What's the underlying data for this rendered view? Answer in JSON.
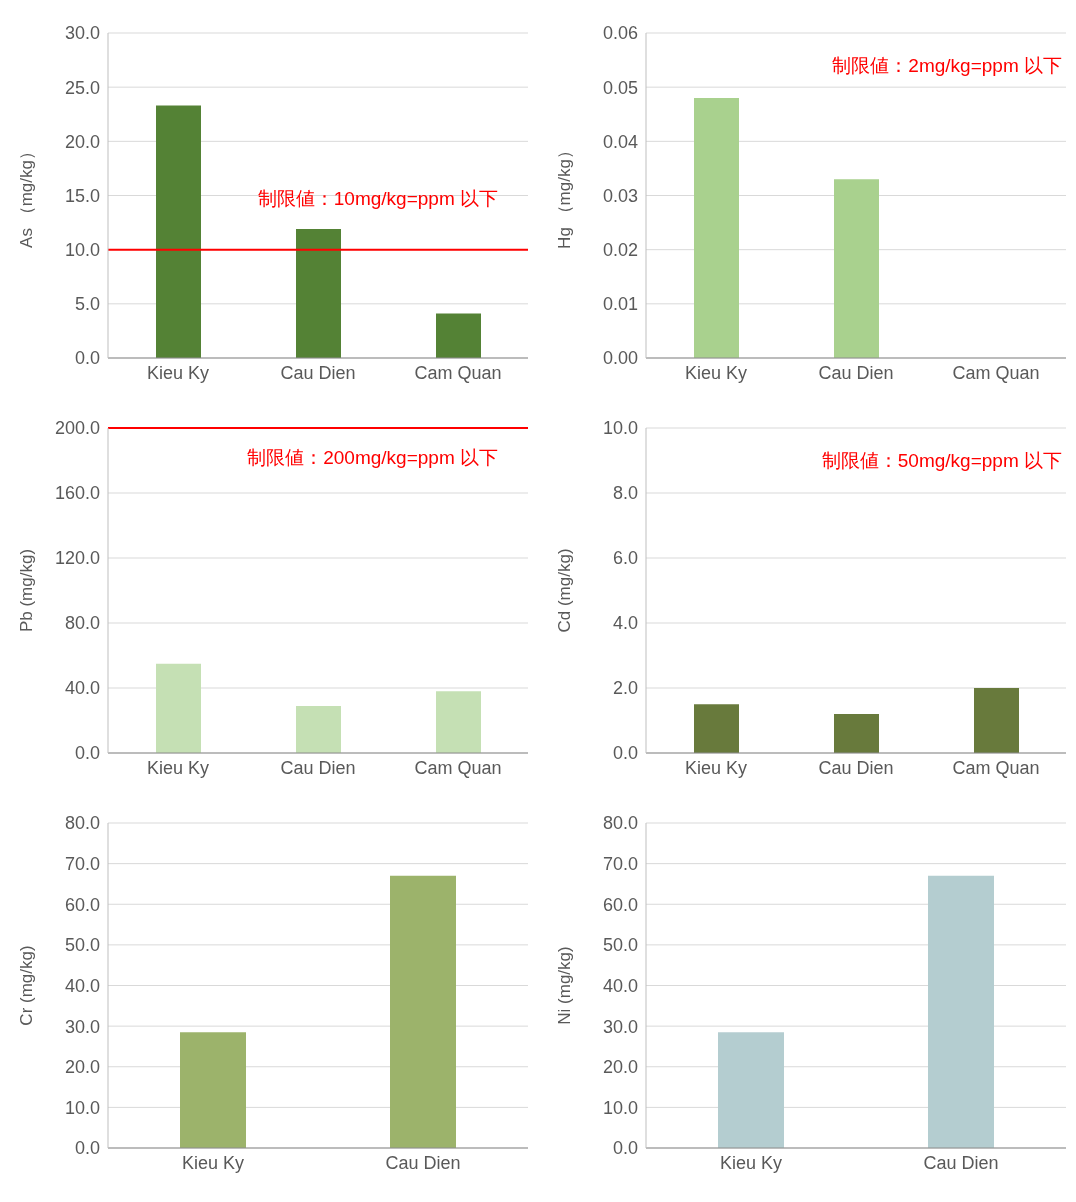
{
  "chart_data": [
    {
      "type": "bar",
      "categories": [
        "Kieu Ky",
        "Cau Dien",
        "Cam Quan"
      ],
      "values": [
        23.3,
        11.9,
        4.1
      ],
      "color": "#548235",
      "ylabel": "As （mg/kg）",
      "ylim": [
        0,
        30
      ],
      "yticks": [
        {
          "value": 0,
          "label": "0.0"
        },
        {
          "value": 5,
          "label": "5.0"
        },
        {
          "value": 10,
          "label": "10.0"
        },
        {
          "value": 15,
          "label": "15.0"
        },
        {
          "value": 20,
          "label": "20.0"
        },
        {
          "value": 25,
          "label": "25.0"
        },
        {
          "value": 30,
          "label": "30.0"
        }
      ],
      "grid": "y",
      "ref_lines": [
        {
          "axis": "y",
          "value": 10,
          "label": "制限値：10mg/kg=ppm 以下",
          "color": "#ff0000"
        }
      ]
    },
    {
      "type": "bar",
      "categories": [
        "Kieu Ky",
        "Cau Dien",
        "Cam Quan"
      ],
      "values": [
        0.048,
        0.033,
        null
      ],
      "color": "#a9d18e",
      "ylabel": "Hg （mg/kg）",
      "ylim": [
        0,
        0.06
      ],
      "yticks": [
        {
          "value": 0,
          "label": "0.00"
        },
        0.01,
        0.02,
        0.03,
        0.04,
        0.05,
        0.06
      ],
      "grid": "y",
      "annotations": [
        "制限値：2mg/kg=ppm 以下"
      ]
    },
    {
      "type": "bar",
      "categories": [
        "Kieu Ky",
        "Cau Dien",
        "Cam Quan"
      ],
      "values": [
        55,
        29,
        38
      ],
      "color": "#c5e0b4",
      "ylabel": "Pb (mg/kg)",
      "ylim": [
        0,
        200
      ],
      "yticks": [
        {
          "value": 0,
          "label": "0.0"
        },
        {
          "value": 40,
          "label": "40.0"
        },
        {
          "value": 80,
          "label": "80.0"
        },
        {
          "value": 120,
          "label": "120.0"
        },
        {
          "value": 160,
          "label": "160.0"
        },
        {
          "value": 200,
          "label": "200.0"
        }
      ],
      "grid": "y",
      "ref_lines": [
        {
          "axis": "y",
          "value": 200,
          "label": "制限値：200mg/kg=ppm 以下",
          "color": "#ff0000"
        }
      ]
    },
    {
      "type": "bar",
      "categories": [
        "Kieu Ky",
        "Cau Dien",
        "Cam Quan"
      ],
      "values": [
        1.5,
        1.2,
        2.0
      ],
      "color": "#687a3c",
      "ylabel": "Cd (mg/kg)",
      "ylim": [
        0,
        10
      ],
      "yticks": [
        {
          "value": 0,
          "label": "0.0"
        },
        {
          "value": 2,
          "label": "2.0"
        },
        {
          "value": 4,
          "label": "4.0"
        },
        {
          "value": 6,
          "label": "6.0"
        },
        {
          "value": 8,
          "label": "8.0"
        },
        {
          "value": 10,
          "label": "10.0"
        }
      ],
      "grid": "y",
      "annotations": [
        "制限値：50mg/kg=ppm 以下"
      ]
    },
    {
      "type": "bar",
      "categories": [
        "Kieu Ky",
        "Cau Dien"
      ],
      "values": [
        28.5,
        67
      ],
      "color": "#9cb36b",
      "ylabel": "Cr (mg/kg)",
      "ylim": [
        0,
        80
      ],
      "yticks": [
        {
          "value": 0,
          "label": "0.0"
        },
        {
          "value": 10,
          "label": "10.0"
        },
        {
          "value": 20,
          "label": "20.0"
        },
        {
          "value": 30,
          "label": "30.0"
        },
        {
          "value": 40,
          "label": "40.0"
        },
        {
          "value": 50,
          "label": "50.0"
        },
        {
          "value": 60,
          "label": "60.0"
        },
        {
          "value": 70,
          "label": "70.0"
        },
        {
          "value": 80,
          "label": "80.0"
        }
      ],
      "grid": "y"
    },
    {
      "type": "bar",
      "categories": [
        "Kieu Ky",
        "Cau Dien"
      ],
      "values": [
        28.5,
        67
      ],
      "color": "#b4cdd0",
      "ylabel": "Ni (mg/kg)",
      "ylim": [
        0,
        80
      ],
      "yticks": [
        {
          "value": 0,
          "label": "0.0"
        },
        {
          "value": 10,
          "label": "10.0"
        },
        {
          "value": 20,
          "label": "20.0"
        },
        {
          "value": 30,
          "label": "30.0"
        },
        {
          "value": 40,
          "label": "40.0"
        },
        {
          "value": 50,
          "label": "50.0"
        },
        {
          "value": 60,
          "label": "60.0"
        },
        {
          "value": 70,
          "label": "70.0"
        },
        {
          "value": 80,
          "label": "80.0"
        }
      ],
      "grid": "y"
    }
  ]
}
